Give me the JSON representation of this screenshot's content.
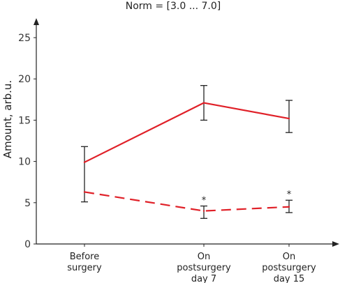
{
  "chart_data": {
    "type": "line",
    "title": "Norm = [3.0 ... 7.0]",
    "xlabel": "",
    "ylabel": "Amount, arb.u.",
    "ylim": [
      0,
      25
    ],
    "yticks": [
      "0",
      "5",
      "10",
      "15",
      "20",
      "25"
    ],
    "categories": [
      [
        "Before",
        "surgery"
      ],
      [
        "On",
        "postsurgery",
        "day 7"
      ],
      [
        "On",
        "postsurgery",
        "day 15"
      ]
    ],
    "series": [
      {
        "values": [
          9.9,
          17.1,
          15.2
        ],
        "error_low": [
          5.1,
          15.0,
          13.5
        ],
        "error_high": [
          11.8,
          19.2,
          17.4
        ],
        "color": "#e02028",
        "dash": false,
        "annotations": [
          "",
          "",
          ""
        ]
      },
      {
        "values": [
          6.3,
          4.0,
          4.5
        ],
        "error_low": null,
        "error_high": null,
        "error_low_custom": [
          null,
          3.1,
          3.8
        ],
        "error_high_custom": [
          null,
          4.6,
          5.3
        ],
        "color": "#e02028",
        "dash": true,
        "annotations": [
          "",
          "*",
          "*"
        ]
      }
    ],
    "grid": false,
    "axis_color": "#222222",
    "errorbar_color": "#222222"
  }
}
